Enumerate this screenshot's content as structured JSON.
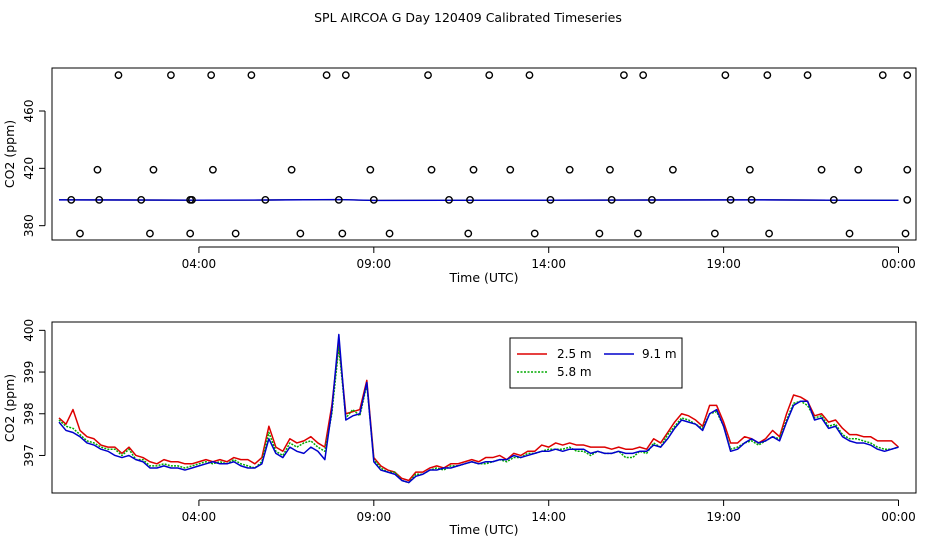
{
  "title": "SPL AIRCOA G  Day 120409  Calibrated Timeseries",
  "colors": {
    "red": "#dd0000",
    "green": "#00aa00",
    "blue": "#0000cc",
    "axis": "#000000"
  },
  "chart_data": [
    {
      "type": "scatter",
      "xlabel": "Time (UTC)",
      "ylabel": "CO2 (ppm)",
      "xlim": [
        -0.2,
        24.5
      ],
      "ylim": [
        370,
        490
      ],
      "xticks": [
        4,
        9,
        14,
        19,
        24
      ],
      "xtick_labels": [
        "04:00",
        "09:00",
        "14:00",
        "19:00",
        "00:00"
      ],
      "yticks": [
        380,
        420,
        460
      ],
      "ytick_labels": [
        "380",
        "420",
        "460"
      ],
      "points": {
        "x": [
          1.7,
          3.2,
          4.35,
          5.5,
          7.65,
          8.2,
          10.55,
          12.3,
          13.45,
          16.15,
          16.7,
          19.05,
          20.25,
          21.4,
          23.55,
          24.25,
          1.1,
          2.7,
          4.4,
          6.65,
          8.9,
          10.65,
          11.85,
          12.9,
          14.6,
          15.75,
          17.55,
          19.75,
          21.8,
          22.85,
          24.25,
          0.6,
          2.6,
          3.75,
          5.05,
          6.9,
          8.1,
          9.45,
          11.7,
          13.6,
          15.45,
          16.55,
          18.75,
          20.3,
          22.6,
          24.2,
          0.35,
          1.15,
          2.35,
          3.75,
          3.8,
          5.9,
          8.0,
          9.0,
          11.15,
          11.75,
          14.05,
          15.8,
          16.95,
          19.2,
          19.8,
          22.15,
          24.25
        ],
        "y": [
          485,
          485,
          485,
          485,
          485,
          485,
          485,
          485,
          485,
          485,
          485,
          485,
          485,
          485,
          485,
          485,
          419,
          419,
          419,
          419,
          419,
          419,
          419,
          419,
          419,
          419,
          419,
          419,
          419,
          419,
          419,
          374.5,
          374.5,
          374.5,
          374.5,
          374.5,
          374.5,
          374.5,
          374.5,
          374.5,
          374.5,
          374.5,
          374.5,
          374.5,
          374.5,
          374.5,
          398,
          398,
          398,
          398,
          398,
          398,
          398,
          398,
          398,
          398,
          398,
          398,
          398,
          398,
          398,
          398,
          398
        ]
      },
      "series": [
        {
          "name": "baseline",
          "x": [
            0.0,
            2.0,
            4.0,
            6.0,
            8.0,
            9.0,
            11.0,
            14.0,
            17.0,
            20.0,
            22.0,
            24.0
          ],
          "values": [
            398,
            397.9,
            397.8,
            397.9,
            398.2,
            397.6,
            397.7,
            397.8,
            397.9,
            398.0,
            397.8,
            397.7
          ]
        }
      ]
    },
    {
      "type": "line",
      "xlabel": "Time (UTC)",
      "ylabel": "CO2 (ppm)",
      "xlim": [
        -0.2,
        24.5
      ],
      "ylim": [
        396.1,
        400.2
      ],
      "xticks": [
        4,
        9,
        14,
        19,
        24
      ],
      "xtick_labels": [
        "04:00",
        "09:00",
        "14:00",
        "19:00",
        "00:00"
      ],
      "yticks": [
        397,
        398,
        399,
        400
      ],
      "ytick_labels": [
        "397",
        "398",
        "399",
        "400"
      ],
      "legend": [
        "2.5 m",
        "5.8 m",
        "9.1 m"
      ],
      "legend_position": "top-center",
      "x": [
        0.0,
        0.2,
        0.4,
        0.6,
        0.8,
        1.0,
        1.2,
        1.4,
        1.6,
        1.8,
        2.0,
        2.2,
        2.4,
        2.6,
        2.8,
        3.0,
        3.2,
        3.4,
        3.6,
        3.8,
        4.0,
        4.2,
        4.4,
        4.6,
        4.8,
        5.0,
        5.2,
        5.4,
        5.6,
        5.8,
        6.0,
        6.2,
        6.4,
        6.6,
        6.8,
        7.0,
        7.2,
        7.4,
        7.6,
        7.8,
        8.0,
        8.2,
        8.4,
        8.6,
        8.8,
        9.0,
        9.2,
        9.4,
        9.6,
        9.8,
        10.0,
        10.2,
        10.4,
        10.6,
        10.8,
        11.0,
        11.2,
        11.4,
        11.6,
        11.8,
        12.0,
        12.2,
        12.4,
        12.6,
        12.8,
        13.0,
        13.2,
        13.4,
        13.6,
        13.8,
        14.0,
        14.2,
        14.4,
        14.6,
        14.8,
        15.0,
        15.2,
        15.4,
        15.6,
        15.8,
        16.0,
        16.2,
        16.4,
        16.6,
        16.8,
        17.0,
        17.2,
        17.4,
        17.6,
        17.8,
        18.0,
        18.2,
        18.4,
        18.6,
        18.8,
        19.0,
        19.2,
        19.4,
        19.6,
        19.8,
        20.0,
        20.2,
        20.4,
        20.6,
        20.8,
        21.0,
        21.2,
        21.4,
        21.6,
        21.8,
        22.0,
        22.2,
        22.4,
        22.6,
        22.8,
        23.0,
        23.2,
        23.4,
        23.6,
        23.8,
        24.0
      ],
      "series": [
        {
          "name": "2.5 m",
          "color": "#dd0000",
          "values": [
            397.9,
            397.75,
            398.1,
            397.6,
            397.45,
            397.4,
            397.25,
            397.2,
            397.2,
            397.05,
            397.2,
            397.0,
            396.95,
            396.85,
            396.8,
            396.9,
            396.85,
            396.85,
            396.8,
            396.8,
            396.85,
            396.9,
            396.85,
            396.9,
            396.85,
            396.95,
            396.9,
            396.9,
            396.8,
            396.95,
            397.7,
            397.2,
            397.1,
            397.4,
            397.3,
            397.35,
            397.45,
            397.3,
            397.2,
            398.2,
            399.7,
            398.0,
            398.05,
            398.1,
            398.8,
            396.95,
            396.75,
            396.65,
            396.6,
            396.45,
            396.4,
            396.6,
            396.6,
            396.7,
            396.75,
            396.7,
            396.8,
            396.8,
            396.85,
            396.9,
            396.85,
            396.95,
            396.95,
            397.0,
            396.9,
            397.05,
            397.0,
            397.1,
            397.1,
            397.25,
            397.2,
            397.3,
            397.25,
            397.3,
            397.25,
            397.25,
            397.2,
            397.2,
            397.2,
            397.15,
            397.2,
            397.15,
            397.15,
            397.2,
            397.15,
            397.4,
            397.3,
            397.55,
            397.8,
            398.0,
            397.95,
            397.85,
            397.7,
            398.2,
            398.2,
            397.8,
            397.3,
            397.3,
            397.45,
            397.4,
            397.3,
            397.4,
            397.6,
            397.45,
            398.0,
            398.45,
            398.4,
            398.3,
            397.95,
            398.0,
            397.8,
            397.85,
            397.65,
            397.5,
            397.5,
            397.45,
            397.45,
            397.35,
            397.35,
            397.35,
            397.2
          ]
        },
        {
          "name": "5.8 m",
          "color": "#00aa00",
          "values": [
            397.85,
            397.7,
            397.65,
            397.5,
            397.35,
            397.3,
            397.2,
            397.15,
            397.15,
            397.0,
            397.15,
            396.9,
            396.9,
            396.75,
            396.75,
            396.8,
            396.75,
            396.75,
            396.7,
            396.75,
            396.8,
            396.85,
            396.8,
            396.85,
            396.8,
            396.9,
            396.8,
            396.75,
            396.7,
            396.85,
            397.55,
            397.1,
            397.0,
            397.3,
            397.2,
            397.3,
            397.35,
            397.2,
            397.1,
            398.0,
            399.6,
            397.9,
            398.1,
            397.95,
            398.7,
            396.9,
            396.7,
            396.6,
            396.6,
            396.4,
            396.35,
            396.55,
            396.55,
            396.65,
            396.7,
            396.65,
            396.75,
            396.75,
            396.8,
            396.85,
            396.8,
            396.8,
            396.85,
            396.9,
            396.85,
            396.95,
            396.95,
            397.05,
            397.05,
            397.1,
            397.15,
            397.15,
            397.15,
            397.2,
            397.1,
            397.1,
            397.0,
            397.1,
            397.05,
            397.05,
            397.1,
            396.95,
            396.95,
            397.1,
            397.05,
            397.3,
            397.2,
            397.5,
            397.7,
            397.9,
            397.85,
            397.75,
            397.65,
            398.0,
            398.05,
            397.7,
            397.15,
            397.2,
            397.3,
            397.35,
            397.25,
            397.35,
            397.45,
            397.4,
            397.85,
            398.25,
            398.3,
            398.2,
            397.9,
            397.95,
            397.7,
            397.75,
            397.5,
            397.4,
            397.4,
            397.35,
            397.3,
            397.2,
            397.15,
            397.15,
            397.2
          ]
        },
        {
          "name": "9.1 m",
          "color": "#0000cc",
          "values": [
            397.8,
            397.6,
            397.55,
            397.45,
            397.3,
            397.25,
            397.15,
            397.1,
            397.0,
            396.95,
            397.0,
            396.9,
            396.85,
            396.7,
            396.7,
            396.75,
            396.7,
            396.7,
            396.65,
            396.7,
            396.75,
            396.8,
            396.85,
            396.8,
            396.8,
            396.85,
            396.75,
            396.7,
            396.7,
            396.8,
            397.4,
            397.05,
            396.95,
            397.2,
            397.1,
            397.05,
            397.2,
            397.1,
            396.9,
            398.1,
            399.9,
            397.85,
            397.95,
            398.0,
            398.75,
            396.85,
            396.65,
            396.6,
            396.55,
            396.4,
            396.35,
            396.5,
            396.55,
            396.65,
            396.65,
            396.7,
            396.7,
            396.75,
            396.8,
            396.85,
            396.8,
            396.85,
            396.85,
            396.9,
            396.9,
            397.0,
            396.95,
            397.0,
            397.05,
            397.1,
            397.1,
            397.15,
            397.1,
            397.15,
            397.15,
            397.15,
            397.05,
            397.1,
            397.05,
            397.05,
            397.1,
            397.05,
            397.05,
            397.1,
            397.1,
            397.25,
            397.2,
            397.4,
            397.65,
            397.85,
            397.8,
            397.75,
            397.6,
            398.0,
            398.1,
            397.7,
            397.1,
            397.15,
            397.3,
            397.4,
            397.3,
            397.35,
            397.45,
            397.35,
            397.8,
            398.2,
            398.3,
            398.3,
            397.85,
            397.9,
            397.65,
            397.7,
            397.45,
            397.35,
            397.3,
            397.3,
            397.25,
            397.15,
            397.1,
            397.15,
            397.2
          ]
        }
      ]
    }
  ]
}
